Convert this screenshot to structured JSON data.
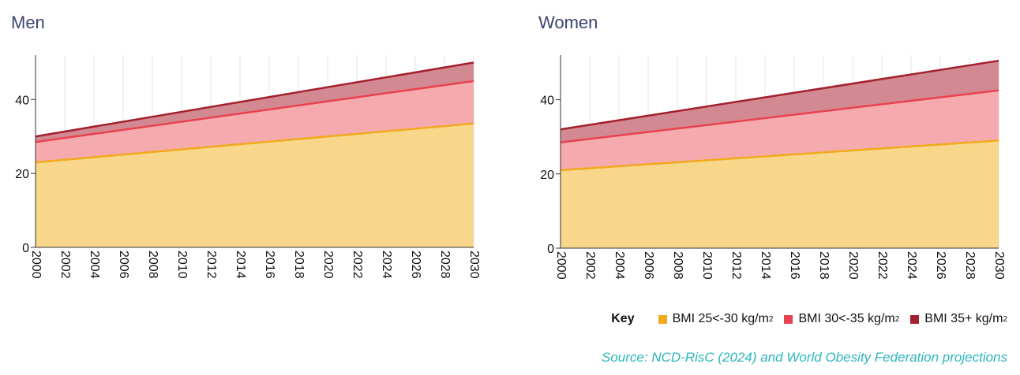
{
  "chart_data": [
    {
      "type": "area",
      "title": "Men",
      "stacked": true,
      "x": [
        2000,
        2030
      ],
      "xticks": [
        2000,
        2002,
        2004,
        2006,
        2008,
        2010,
        2012,
        2014,
        2016,
        2018,
        2020,
        2022,
        2024,
        2026,
        2028,
        2030
      ],
      "yticks": [
        0,
        20,
        40
      ],
      "ylim": [
        0,
        52
      ],
      "grid": true,
      "series": [
        {
          "name": "BMI 25<-30 kg/m²",
          "values": [
            23,
            33.5
          ]
        },
        {
          "name": "BMI 30<-35 kg/m²",
          "values": [
            5.5,
            11.5
          ]
        },
        {
          "name": "BMI 35+ kg/m²",
          "values": [
            1.5,
            5
          ]
        }
      ]
    },
    {
      "type": "area",
      "title": "Women",
      "stacked": true,
      "x": [
        2000,
        2030
      ],
      "xticks": [
        2000,
        2002,
        2004,
        2006,
        2008,
        2010,
        2012,
        2014,
        2016,
        2018,
        2020,
        2022,
        2024,
        2026,
        2028,
        2030
      ],
      "yticks": [
        0,
        20,
        40
      ],
      "ylim": [
        0,
        52
      ],
      "grid": true,
      "series": [
        {
          "name": "BMI 25<-30 kg/m²",
          "values": [
            21,
            29
          ]
        },
        {
          "name": "BMI 30<-35 kg/m²",
          "values": [
            7.5,
            13.5
          ]
        },
        {
          "name": "BMI 35+ kg/m²",
          "values": [
            3.5,
            8
          ]
        }
      ]
    }
  ],
  "legend": {
    "title": "Key",
    "placement": "bottom-right",
    "items": [
      {
        "label": "BMI 25<-30 kg/m",
        "sup": "2",
        "color": "#f0aa1c"
      },
      {
        "label": "BMI 30<-35 kg/m",
        "sup": "2",
        "color": "#e8424f"
      },
      {
        "label": "BMI 35+ kg/m",
        "sup": "2",
        "color": "#a3202d"
      }
    ]
  },
  "colors": {
    "fills": [
      "#f8d68a",
      "#f5aaae",
      "#d38991"
    ],
    "lines": [
      "#f0aa1c",
      "#e8424f",
      "#a3202d"
    ],
    "grid": "#e6e6e6",
    "axis": "#333333"
  },
  "source": "Source: NCD-RisC (2024) and World Obesity Federation projections"
}
